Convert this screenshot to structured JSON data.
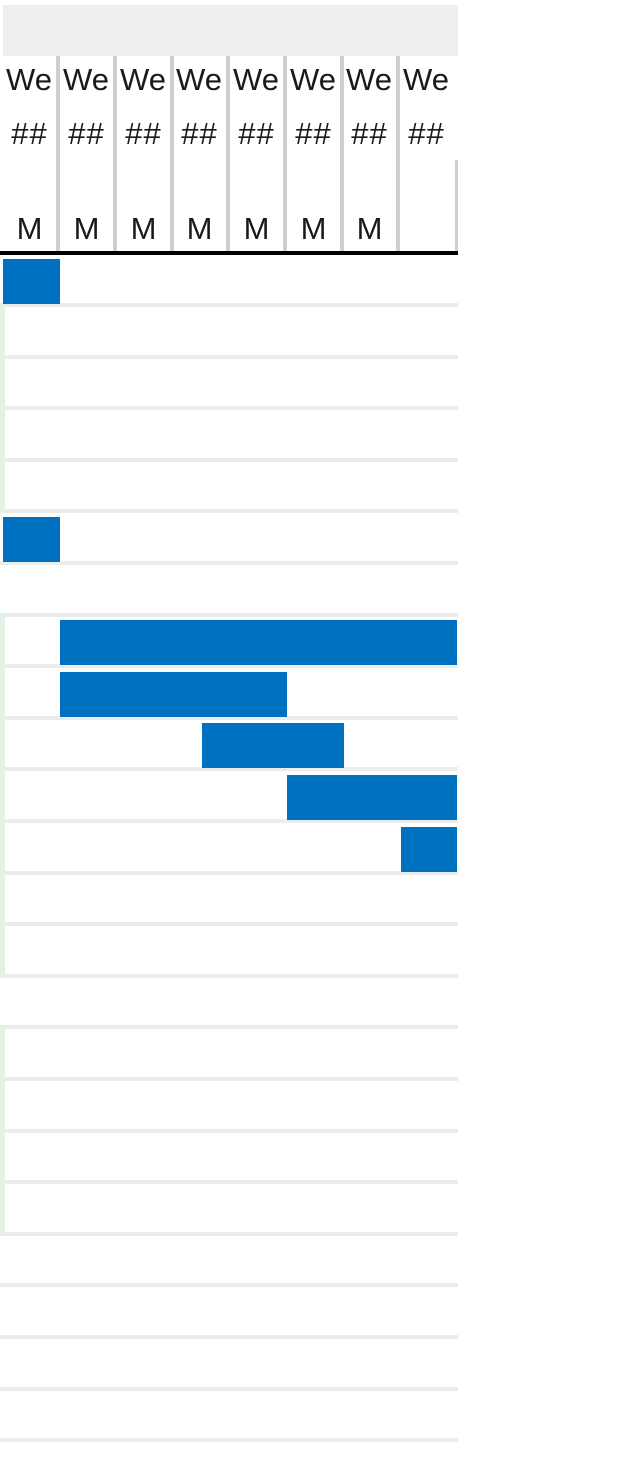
{
  "gantt": {
    "header": {
      "columns": [
        {
          "week": "We",
          "date": "##",
          "marker": "M"
        },
        {
          "week": "We",
          "date": "##",
          "marker": "M"
        },
        {
          "week": "We",
          "date": "##",
          "marker": "M"
        },
        {
          "week": "We",
          "date": "##",
          "marker": "M"
        },
        {
          "week": "We",
          "date": "##",
          "marker": "M"
        },
        {
          "week": "We",
          "date": "##",
          "marker": "M"
        },
        {
          "week": "We",
          "date": "##",
          "marker": "M"
        },
        {
          "week": "We",
          "date": "##",
          "marker": ""
        }
      ]
    },
    "colors": {
      "bar": "#0070c0",
      "header_background": "#eeeeee",
      "column_separator": "#cfcfcf",
      "row_rule": "#ececec",
      "row_accent": "#e3f2e3",
      "header_rule": "#000000"
    },
    "rows": [
      {
        "accent": false,
        "bar": {
          "start_week": 1,
          "end_week": 1
        }
      },
      {
        "accent": true,
        "bar": null
      },
      {
        "accent": true,
        "bar": null
      },
      {
        "accent": true,
        "bar": null
      },
      {
        "accent": true,
        "bar": null
      },
      {
        "accent": false,
        "bar": {
          "start_week": 1,
          "end_week": 1
        }
      },
      {
        "accent": false,
        "bar": null
      },
      {
        "accent": true,
        "bar": {
          "start_week": 2,
          "end_week": 8
        }
      },
      {
        "accent": true,
        "bar": {
          "start_week": 2,
          "end_week": 5
        }
      },
      {
        "accent": true,
        "bar": {
          "start_week": 4.5,
          "end_week": 6
        }
      },
      {
        "accent": true,
        "bar": {
          "start_week": 6,
          "end_week": 8
        }
      },
      {
        "accent": true,
        "bar": {
          "start_week": 8,
          "end_week": 8
        }
      },
      {
        "accent": true,
        "bar": null
      },
      {
        "accent": true,
        "bar": null
      },
      {
        "accent": false,
        "bar": null
      },
      {
        "accent": true,
        "bar": null
      },
      {
        "accent": true,
        "bar": null
      },
      {
        "accent": true,
        "bar": null
      },
      {
        "accent": true,
        "bar": null
      },
      {
        "accent": false,
        "bar": null
      },
      {
        "accent": false,
        "bar": null
      },
      {
        "accent": false,
        "bar": null
      },
      {
        "accent": false,
        "bar": null
      },
      {
        "accent": false,
        "bar": null
      }
    ]
  }
}
